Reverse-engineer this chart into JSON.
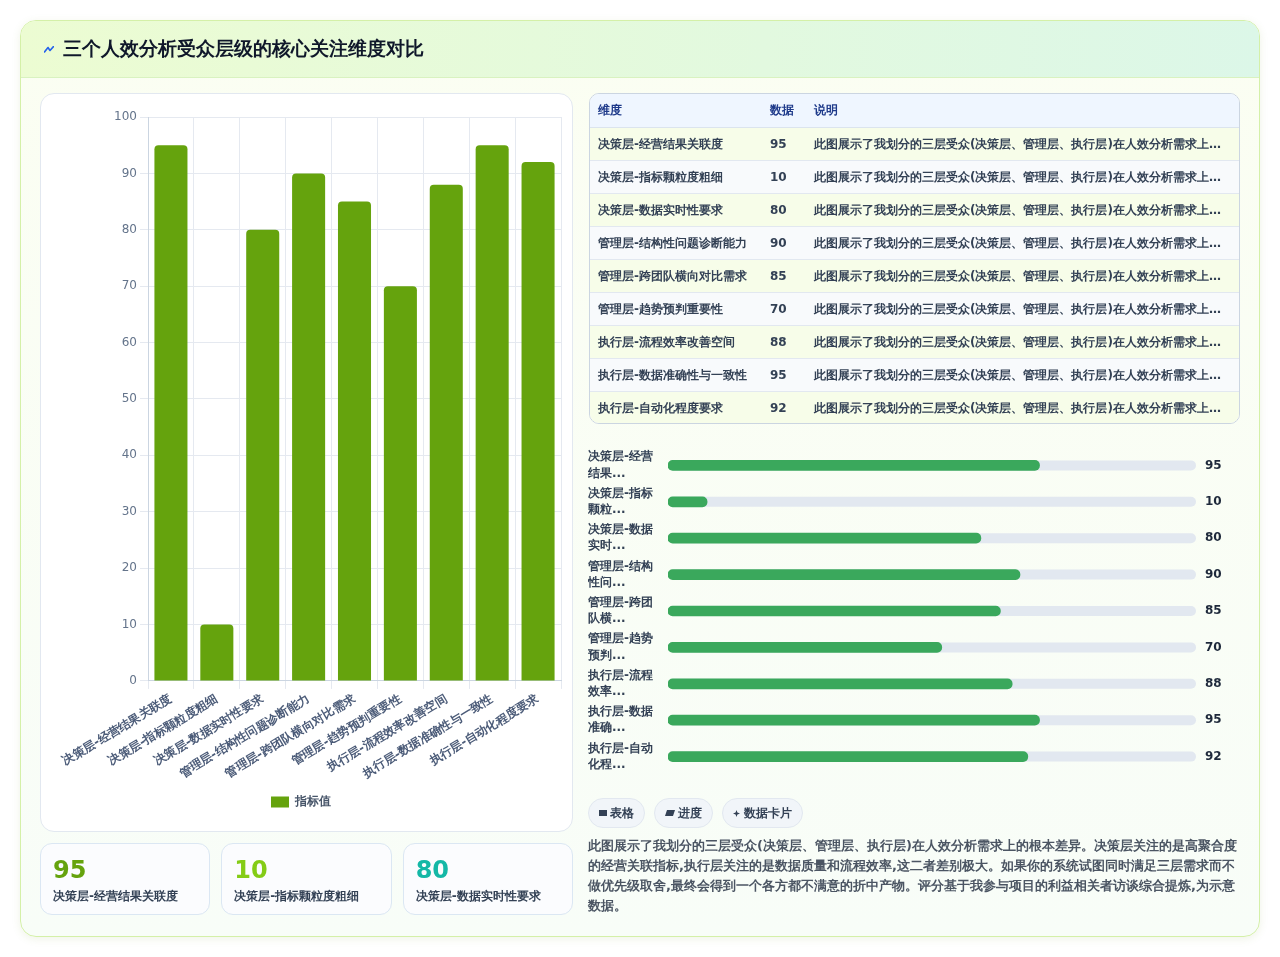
{
  "chart_data": [
    {
      "type": "bar",
      "title": "三个人效分析受众层级的核心关注维度对比",
      "categories": [
        "决策层-经营结果关联度",
        "决策层-指标颗粒度粗细",
        "决策层-数据实时性要求",
        "管理层-结构性问题诊断能力",
        "管理层-跨团队横向对比需求",
        "管理层-趋势预判重要性",
        "执行层-流程效率改善空间",
        "执行层-数据准确性与一致性",
        "执行层-自动化程度要求"
      ],
      "series": [
        {
          "name": "指标值",
          "color": "#65a30d",
          "values": [
            95,
            10,
            80,
            90,
            85,
            70,
            88,
            95,
            92
          ]
        }
      ],
      "ylim": [
        0,
        100
      ],
      "yticks": [
        0,
        10,
        20,
        30,
        40,
        50,
        60,
        70,
        80,
        90,
        100
      ],
      "grid": true,
      "legend": "bottom"
    },
    {
      "type": "other",
      "categories": [
        "决策层-经营结果关联度",
        "决策层-指标颗粒度粗细",
        "决策层-数据实时性要求",
        "管理层-结构性问题诊断能力",
        "管理层-跨团队横向对比需求",
        "管理层-趋势预判重要性",
        "执行层-流程效率改善空间",
        "执行层-数据准确性与一致性",
        "执行层-自动化程度要求"
      ],
      "values": [
        95,
        10,
        80,
        90,
        85,
        70,
        88,
        95,
        92
      ],
      "data_labels": true,
      "annotations": [
        "维度",
        "数据",
        "说明",
        "此图展示了我划分的三层受众(决策层、管理层、执行层)在人效分析需求上…"
      ]
    },
    {
      "type": "bar",
      "orientation": "horizontal",
      "categories": [
        "决策层-经营结果...",
        "决策层-指标颗粒...",
        "决策层-数据实时...",
        "管理层-结构性问...",
        "管理层-跨团队横...",
        "管理层-趋势预判...",
        "执行层-流程效率...",
        "执行层-数据准确...",
        "执行层-自动化程..."
      ],
      "values": [
        95,
        10,
        80,
        90,
        85,
        70,
        88,
        95,
        92
      ],
      "color": "#3aa85c",
      "xlim": [
        0,
        135
      ],
      "data_labels": true,
      "tick_labels": "y"
    },
    {
      "type": "other",
      "categories": [
        "决策层-经营结果关联度",
        "决策层-指标颗粒度粗细",
        "决策层-数据实时性要求"
      ],
      "values": [
        95,
        10,
        80
      ],
      "data_labels": true
    },
    {
      "type": "other",
      "annotations": [
        "表格",
        "进度",
        "数据卡片",
        "此图展示了我划分的三层受众(决策层、管理层、执行层)在人效分析需求上的根本差异。决策层关注的是高聚合度的经营关联指标,执行层关注的是数据质量和流程效率,这二者差别极大。如果你的系统试图同时满足三层需求而不做优先级取舍,最终会得到一个各方都不满意的折中产物。评分基于我参与项目的利益相关者访谈综合提炼,为示意数据。"
      ]
    }
  ]
}
